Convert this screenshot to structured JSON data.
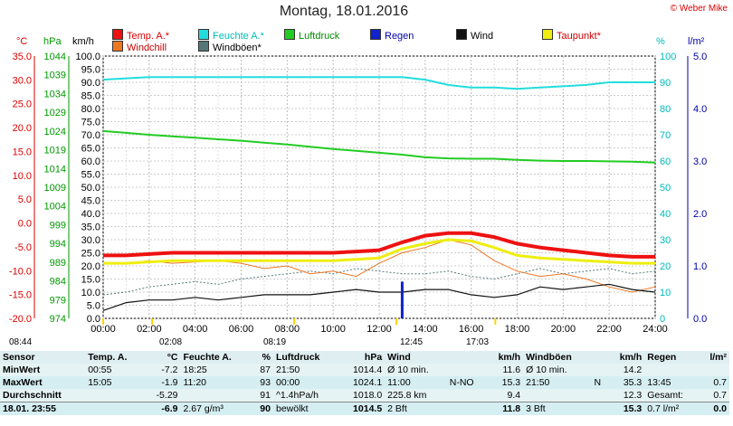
{
  "title": "Montag, 18.01.2016",
  "copyright": "© Weber Mike",
  "axis_units": {
    "temp": "°C",
    "pressure": "hPa",
    "wind": "km/h",
    "humidity": "%",
    "rain": "l/m²"
  },
  "legend": [
    {
      "label": "Temp. A.*",
      "color": "#ee1111"
    },
    {
      "label": "Feuchte A.*",
      "color": "#22dddd"
    },
    {
      "label": "Luftdruck",
      "color": "#22cc22"
    },
    {
      "label": "Regen",
      "color": "#1122cc"
    },
    {
      "label": "Wind",
      "color": "#111111"
    },
    {
      "label": "Taupunkt*",
      "color": "#eeee11"
    },
    {
      "label": "Windchill",
      "color": "#ee7722"
    },
    {
      "label": "Windböen*",
      "color": "#557777"
    }
  ],
  "sun_times": {
    "sunrise_start": "08:44",
    "sunrise": "02:08",
    "noon_a": "08:19",
    "noon_b": "12:45",
    "sunset": "17:03"
  },
  "chart_data": {
    "type": "line",
    "title": "Montag, 18.01.2016",
    "x_ticks": [
      "00:00",
      "02:00",
      "04:00",
      "06:00",
      "08:00",
      "10:00",
      "12:00",
      "14:00",
      "16:00",
      "18:00",
      "20:00",
      "22:00",
      "24:00"
    ],
    "axes": {
      "temp_c": {
        "min": -20,
        "max": 35,
        "ticks": [
          "35.0",
          "30.0",
          "25.0",
          "20.0",
          "15.0",
          "10.0",
          "5.0",
          "0.0",
          "-5.0",
          "-10.0",
          "-15.0",
          "-20.0"
        ]
      },
      "pressure_hpa": {
        "min": 974,
        "max": 1044,
        "ticks": [
          "1044",
          "1039",
          "1034",
          "1029",
          "1024",
          "1019",
          "1014",
          "1009",
          "1004",
          "999",
          "994",
          "989",
          "984",
          "979",
          "974"
        ]
      },
      "wind_kmh": {
        "min": 0,
        "max": 100,
        "ticks": [
          "100.0",
          "95.0",
          "90.0",
          "85.0",
          "80.0",
          "75.0",
          "70.0",
          "65.0",
          "60.0",
          "55.0",
          "50.0",
          "45.0",
          "40.0",
          "35.0",
          "30.0",
          "25.0",
          "20.0",
          "15.0",
          "10.0",
          "5.0",
          "0.0"
        ]
      },
      "humidity_pct": {
        "min": 0,
        "max": 100,
        "ticks": [
          "100",
          "90",
          "80",
          "70",
          "60",
          "50",
          "40",
          "30",
          "20",
          "10",
          "0"
        ]
      },
      "rain_lm2": {
        "min": 0,
        "max": 5,
        "ticks": [
          "5.0",
          "4.0",
          "3.0",
          "2.0",
          "1.0",
          "0.0"
        ]
      }
    },
    "hours": [
      0,
      1,
      2,
      3,
      4,
      5,
      6,
      7,
      8,
      9,
      10,
      11,
      12,
      13,
      14,
      15,
      16,
      17,
      18,
      19,
      20,
      21,
      22,
      23,
      24
    ],
    "series": [
      {
        "name": "Temp. A.*",
        "axis": "wind_kmh",
        "values": [
          24,
          24,
          24.5,
          25,
          25,
          25,
          25,
          25,
          25,
          25,
          25,
          25.5,
          26,
          29,
          31.5,
          32.5,
          32.5,
          31,
          28.5,
          27,
          26,
          25,
          24,
          23.5,
          23.5
        ]
      },
      {
        "name": "Feuchte A.*",
        "axis": "humidity_pct",
        "values": [
          91,
          91.5,
          92,
          92,
          92,
          92,
          92,
          92,
          92,
          92,
          92,
          92,
          92,
          92,
          91,
          89,
          88,
          88,
          87.5,
          88,
          88.5,
          89,
          90,
          90,
          90
        ]
      },
      {
        "name": "Luftdruck",
        "axis": "pressure_hpa",
        "values": [
          1024,
          1023.5,
          1023,
          1022.6,
          1022.2,
          1021.8,
          1021.4,
          1020.9,
          1020.4,
          1019.8,
          1019.2,
          1018.7,
          1018.2,
          1017.7,
          1017,
          1016.7,
          1016.6,
          1016.6,
          1016.3,
          1016.1,
          1016,
          1016,
          1015.9,
          1015.8,
          1015.6
        ]
      },
      {
        "name": "Taupunkt*",
        "axis": "wind_kmh",
        "values": [
          21,
          21,
          21.5,
          22,
          22,
          22,
          22,
          22,
          22,
          22,
          22,
          22.5,
          23,
          26.5,
          28.5,
          30,
          29.5,
          27,
          24,
          23,
          22.5,
          22,
          21.5,
          21,
          21
        ]
      },
      {
        "name": "Windchill",
        "axis": "wind_kmh",
        "values": [
          21,
          21,
          22,
          21,
          21.5,
          22,
          21,
          19,
          20,
          17,
          18,
          16,
          21,
          25,
          27,
          30,
          28,
          22,
          18,
          16,
          17,
          15,
          12,
          10,
          12
        ]
      },
      {
        "name": "Windböen*",
        "axis": "wind_kmh",
        "values": [
          9,
          10,
          12,
          13,
          14,
          13,
          15,
          16,
          17,
          18,
          17,
          19,
          18,
          17,
          17,
          18,
          16,
          15,
          17,
          19,
          17,
          18,
          19,
          17,
          18
        ]
      },
      {
        "name": "Wind",
        "axis": "wind_kmh",
        "values": [
          3,
          6,
          7,
          7,
          8,
          7,
          8,
          9,
          9,
          9,
          10,
          11,
          10,
          10,
          11,
          11,
          9,
          8,
          9,
          12,
          11,
          12,
          13,
          11,
          10
        ]
      },
      {
        "name": "Regen",
        "axis": "rain_lm2",
        "values": [
          0,
          0,
          0,
          0,
          0,
          0,
          0,
          0,
          0,
          0,
          0,
          0,
          0,
          0.7,
          0,
          0,
          0,
          0,
          0,
          0,
          0,
          0,
          0,
          0,
          0
        ]
      }
    ]
  },
  "stats": {
    "headers": {
      "sensor": "Sensor",
      "temp": "Temp. A.",
      "temp_unit": "°C",
      "hum": "Feuchte A.",
      "hum_unit": "%",
      "press": "Luftdruck",
      "press_unit": "hPa",
      "wind": "Wind",
      "wind_unit": "km/h",
      "gust": "Windböen",
      "gust_unit": "km/h",
      "rain": "Regen",
      "rain_unit": "l/m²"
    },
    "rows": [
      {
        "label": "MinWert",
        "temp_t": "00:55",
        "temp_v": "-7.2",
        "hum_t": "18:25",
        "hum_v": "87",
        "press_t": "21:50",
        "press_v": "1014.4",
        "wind_t": "Ø 10 min.",
        "wind_v": "11.6",
        "gust_t": "Ø 10 min.",
        "gust_v": "14.2",
        "rain_t": "",
        "rain_v": ""
      },
      {
        "label": "MaxWert",
        "temp_t": "15:05",
        "temp_v": "-1.9",
        "hum_t": "11:20",
        "hum_v": "93",
        "press_t": "00:00",
        "press_v": "1024.1",
        "wind_t": "11:00",
        "wind_m": "N-NO",
        "wind_v": "15.3",
        "gust_t": "21:50",
        "gust_m": "N",
        "gust_v": "35.3",
        "rain_t": "13:45",
        "rain_v": "0.7"
      },
      {
        "label": "Durchschnitt",
        "temp_t": "",
        "temp_v": "-5.29",
        "hum_t": "",
        "hum_v": "91",
        "press_t": "^1.4hPa/h",
        "press_v": "1018.0",
        "wind_t": "225.8 km",
        "wind_v": "9.4",
        "gust_t": "",
        "gust_v": "12.3",
        "rain_t": "Gesamt:",
        "rain_v": "0.7"
      }
    ],
    "current": {
      "label": "18.01. 23:55",
      "temp_v": "-6.9",
      "hum_t": "2.67 g/m³",
      "hum_v": "90",
      "press_t": "bewölkt",
      "press_v": "1014.5",
      "wind_t": "2 Bft",
      "wind_v": "11.8",
      "gust_t": "3 Bft",
      "gust_v": "15.3",
      "rain_t": "0.7 l/m²",
      "rain_v": "0.0"
    }
  }
}
